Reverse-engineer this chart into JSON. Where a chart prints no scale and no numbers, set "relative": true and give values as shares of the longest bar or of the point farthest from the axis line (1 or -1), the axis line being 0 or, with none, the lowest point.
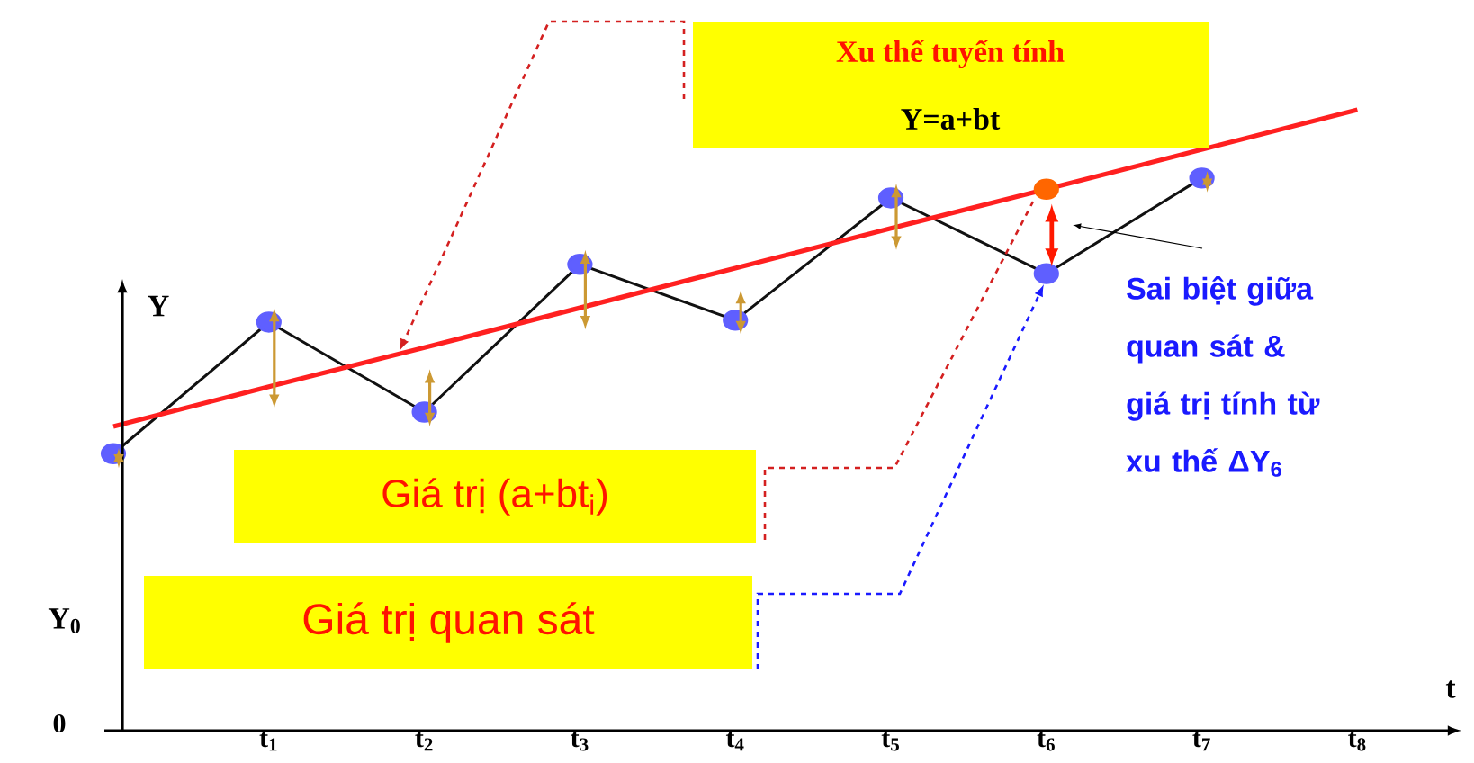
{
  "chart_data": {
    "type": "line",
    "relative": true,
    "xlabel": "t",
    "ylabel": "Y",
    "categories": [
      null,
      "t$_{1}$",
      "t$_{2}$",
      "t$_{3}$",
      "t$_{4}$",
      "t$_{5}$",
      "t$_{6}$",
      "t$_{7}$",
      "t$_{8}$"
    ],
    "series": [
      {
        "type": "line",
        "color": "#111111",
        "marker": "circle",
        "values": [
          0.446,
          0.658,
          0.513,
          0.751,
          0.661,
          0.858,
          0.736,
          0.89,
          null
        ]
      },
      {
        "type": "line",
        "color": "#ff2020",
        "marker": "none",
        "values": [
          0.49,
          0.554,
          0.617,
          0.681,
          0.745,
          0.809,
          0.872,
          0.936,
          1
        ]
      },
      {
        "type": "scatter",
        "color": "#ff6600",
        "marker": "circle",
        "values": [
          null,
          null,
          null,
          null,
          null,
          null,
          0.872,
          null,
          null
        ]
      }
    ],
    "annotations": [
      "Xu thế tuyến tính",
      "Y=a+bt",
      "Giá trị (a+bt$_{i}$)",
      "Giá trị quan sát",
      "Sai biệt giữa quan sát & giá trị tính từ xu thế ΔY$_{6}$",
      "Y$_{0}$",
      "0"
    ]
  }
}
